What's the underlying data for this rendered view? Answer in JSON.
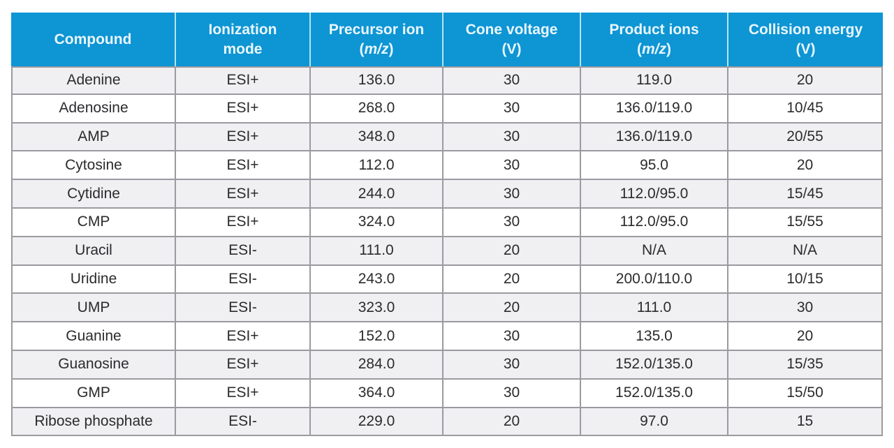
{
  "colors": {
    "header_bg": "#0d95d4",
    "header_text": "#eaf7fd",
    "header_divider": "#b9e4f3",
    "grid": "#9a9aa0",
    "row_odd": "#f0f0f3",
    "row_even": "#ffffff",
    "body_text": "#2b2b2e"
  },
  "chart_data": {
    "type": "table",
    "columns": [
      {
        "title": "Compound"
      },
      {
        "title": "Ionization",
        "sub": "mode"
      },
      {
        "title": "Precursor ion",
        "sub_pre": "(",
        "sub_italic": "m/z",
        "sub_post": ")"
      },
      {
        "title": "Cone voltage",
        "sub": "(V)"
      },
      {
        "title": "Product ions",
        "sub_pre": "(",
        "sub_italic": "m/z",
        "sub_post": ")"
      },
      {
        "title": "Collision energy",
        "sub": "(V)"
      }
    ],
    "rows": [
      [
        "Adenine",
        "ESI+",
        "136.0",
        "30",
        "119.0",
        "20"
      ],
      [
        "Adenosine",
        "ESI+",
        "268.0",
        "30",
        "136.0/119.0",
        "10/45"
      ],
      [
        "AMP",
        "ESI+",
        "348.0",
        "30",
        "136.0/119.0",
        "20/55"
      ],
      [
        "Cytosine",
        "ESI+",
        "112.0",
        "30",
        "95.0",
        "20"
      ],
      [
        "Cytidine",
        "ESI+",
        "244.0",
        "30",
        "112.0/95.0",
        "15/45"
      ],
      [
        "CMP",
        "ESI+",
        "324.0",
        "30",
        "112.0/95.0",
        "15/55"
      ],
      [
        "Uracil",
        "ESI-",
        "111.0",
        "20",
        "N/A",
        "N/A"
      ],
      [
        "Uridine",
        "ESI-",
        "243.0",
        "20",
        "200.0/110.0",
        "10/15"
      ],
      [
        "UMP",
        "ESI-",
        "323.0",
        "20",
        "111.0",
        "30"
      ],
      [
        "Guanine",
        "ESI+",
        "152.0",
        "30",
        "135.0",
        "20"
      ],
      [
        "Guanosine",
        "ESI+",
        "284.0",
        "30",
        "152.0/135.0",
        "15/35"
      ],
      [
        "GMP",
        "ESI+",
        "364.0",
        "30",
        "152.0/135.0",
        "15/50"
      ],
      [
        "Ribose phosphate",
        "ESI-",
        "229.0",
        "20",
        "97.0",
        "15"
      ]
    ]
  }
}
